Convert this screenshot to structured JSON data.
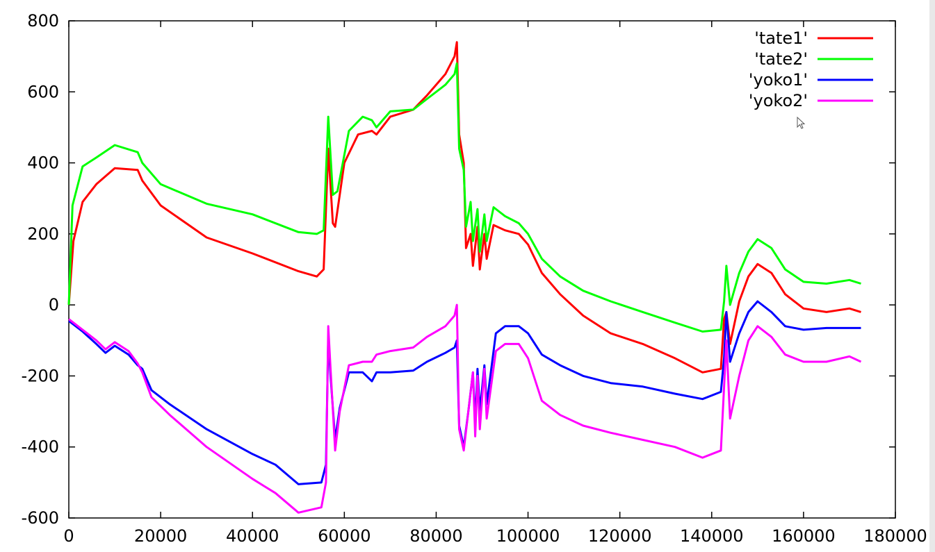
{
  "chart_data": {
    "type": "line",
    "xlim": [
      0,
      180000
    ],
    "ylim": [
      -600,
      800
    ],
    "x_ticks": [
      0,
      20000,
      40000,
      60000,
      80000,
      100000,
      120000,
      140000,
      160000,
      180000
    ],
    "x_tick_labels": [
      "0",
      "20000",
      "40000",
      "60000",
      "80000",
      "100000",
      "120000",
      "140000",
      "160000",
      "180000"
    ],
    "y_ticks": [
      -600,
      -400,
      -200,
      0,
      200,
      400,
      600,
      800
    ],
    "y_tick_labels": [
      "-600",
      "-400",
      "-200",
      "0",
      "200",
      "400",
      "600",
      "800"
    ],
    "grid": false,
    "legend_position": "top-right",
    "series": [
      {
        "name": "'tate1'",
        "color": "#ff0000",
        "points": [
          [
            0,
            0
          ],
          [
            1000,
            180
          ],
          [
            3000,
            290
          ],
          [
            6000,
            340
          ],
          [
            10000,
            385
          ],
          [
            15000,
            380
          ],
          [
            16000,
            350
          ],
          [
            20000,
            280
          ],
          [
            30000,
            190
          ],
          [
            40000,
            145
          ],
          [
            50000,
            95
          ],
          [
            54000,
            80
          ],
          [
            55500,
            100
          ],
          [
            56500,
            440
          ],
          [
            57500,
            230
          ],
          [
            58000,
            220
          ],
          [
            60000,
            400
          ],
          [
            63000,
            480
          ],
          [
            66000,
            490
          ],
          [
            67000,
            480
          ],
          [
            70000,
            530
          ],
          [
            75000,
            550
          ],
          [
            78000,
            590
          ],
          [
            82000,
            650
          ],
          [
            84000,
            700
          ],
          [
            84500,
            740
          ],
          [
            85000,
            480
          ],
          [
            86000,
            400
          ],
          [
            86500,
            160
          ],
          [
            87500,
            200
          ],
          [
            88000,
            110
          ],
          [
            89000,
            220
          ],
          [
            89500,
            100
          ],
          [
            90500,
            200
          ],
          [
            91000,
            130
          ],
          [
            92500,
            225
          ],
          [
            95000,
            210
          ],
          [
            98000,
            200
          ],
          [
            100000,
            170
          ],
          [
            103000,
            90
          ],
          [
            107000,
            30
          ],
          [
            112000,
            -30
          ],
          [
            118000,
            -80
          ],
          [
            125000,
            -110
          ],
          [
            132000,
            -150
          ],
          [
            138000,
            -190
          ],
          [
            142000,
            -180
          ],
          [
            142700,
            -40
          ],
          [
            143200,
            -20
          ],
          [
            144000,
            -110
          ],
          [
            146000,
            10
          ],
          [
            148000,
            80
          ],
          [
            150000,
            115
          ],
          [
            153000,
            90
          ],
          [
            156000,
            30
          ],
          [
            160000,
            -10
          ],
          [
            165000,
            -20
          ],
          [
            170000,
            -10
          ],
          [
            172500,
            -20
          ]
        ]
      },
      {
        "name": "'tate2'",
        "color": "#00ff00",
        "points": [
          [
            0,
            0
          ],
          [
            800,
            280
          ],
          [
            3000,
            390
          ],
          [
            6000,
            415
          ],
          [
            10000,
            450
          ],
          [
            15000,
            430
          ],
          [
            16000,
            400
          ],
          [
            20000,
            340
          ],
          [
            30000,
            285
          ],
          [
            40000,
            255
          ],
          [
            50000,
            205
          ],
          [
            54000,
            200
          ],
          [
            55500,
            210
          ],
          [
            56500,
            530
          ],
          [
            57500,
            310
          ],
          [
            58500,
            320
          ],
          [
            61000,
            490
          ],
          [
            64000,
            530
          ],
          [
            66000,
            520
          ],
          [
            67000,
            500
          ],
          [
            70000,
            545
          ],
          [
            75000,
            550
          ],
          [
            78000,
            580
          ],
          [
            82000,
            620
          ],
          [
            84000,
            650
          ],
          [
            84500,
            680
          ],
          [
            85000,
            440
          ],
          [
            86000,
            380
          ],
          [
            86500,
            220
          ],
          [
            87500,
            290
          ],
          [
            88000,
            180
          ],
          [
            89000,
            270
          ],
          [
            89500,
            150
          ],
          [
            90500,
            255
          ],
          [
            91000,
            180
          ],
          [
            92500,
            275
          ],
          [
            95000,
            250
          ],
          [
            98000,
            230
          ],
          [
            100000,
            200
          ],
          [
            103000,
            130
          ],
          [
            107000,
            80
          ],
          [
            112000,
            40
          ],
          [
            118000,
            10
          ],
          [
            125000,
            -20
          ],
          [
            132000,
            -50
          ],
          [
            138000,
            -75
          ],
          [
            142000,
            -70
          ],
          [
            142700,
            10
          ],
          [
            143200,
            110
          ],
          [
            144000,
            0
          ],
          [
            146000,
            90
          ],
          [
            148000,
            150
          ],
          [
            150000,
            185
          ],
          [
            153000,
            160
          ],
          [
            156000,
            100
          ],
          [
            160000,
            65
          ],
          [
            165000,
            60
          ],
          [
            170000,
            70
          ],
          [
            172500,
            60
          ]
        ]
      },
      {
        "name": "'yoko1'",
        "color": "#0000ff",
        "points": [
          [
            0,
            -45
          ],
          [
            3000,
            -75
          ],
          [
            6000,
            -110
          ],
          [
            8000,
            -135
          ],
          [
            10000,
            -115
          ],
          [
            13000,
            -140
          ],
          [
            15000,
            -170
          ],
          [
            16000,
            -180
          ],
          [
            18000,
            -240
          ],
          [
            22000,
            -280
          ],
          [
            30000,
            -350
          ],
          [
            40000,
            -420
          ],
          [
            45000,
            -450
          ],
          [
            50000,
            -505
          ],
          [
            55000,
            -500
          ],
          [
            56000,
            -450
          ],
          [
            56500,
            -90
          ],
          [
            57000,
            -200
          ],
          [
            58000,
            -380
          ],
          [
            59000,
            -290
          ],
          [
            61000,
            -190
          ],
          [
            64000,
            -190
          ],
          [
            66000,
            -215
          ],
          [
            67000,
            -190
          ],
          [
            70000,
            -190
          ],
          [
            75000,
            -185
          ],
          [
            78000,
            -160
          ],
          [
            82000,
            -135
          ],
          [
            84000,
            -120
          ],
          [
            84500,
            -100
          ],
          [
            85000,
            -340
          ],
          [
            86000,
            -400
          ],
          [
            87000,
            -300
          ],
          [
            88000,
            -190
          ],
          [
            88500,
            -330
          ],
          [
            89000,
            -180
          ],
          [
            89500,
            -300
          ],
          [
            90500,
            -170
          ],
          [
            91000,
            -280
          ],
          [
            93000,
            -80
          ],
          [
            95000,
            -60
          ],
          [
            98000,
            -60
          ],
          [
            100000,
            -80
          ],
          [
            103000,
            -140
          ],
          [
            107000,
            -170
          ],
          [
            112000,
            -200
          ],
          [
            118000,
            -220
          ],
          [
            125000,
            -230
          ],
          [
            132000,
            -250
          ],
          [
            138000,
            -265
          ],
          [
            142000,
            -245
          ],
          [
            142700,
            -150
          ],
          [
            143200,
            -20
          ],
          [
            144000,
            -160
          ],
          [
            146000,
            -80
          ],
          [
            148000,
            -20
          ],
          [
            150000,
            10
          ],
          [
            153000,
            -20
          ],
          [
            156000,
            -60
          ],
          [
            160000,
            -70
          ],
          [
            165000,
            -65
          ],
          [
            170000,
            -65
          ],
          [
            172500,
            -65
          ]
        ]
      },
      {
        "name": "'yoko2'",
        "color": "#ff00ff",
        "points": [
          [
            0,
            -40
          ],
          [
            3000,
            -70
          ],
          [
            6000,
            -100
          ],
          [
            8000,
            -125
          ],
          [
            10000,
            -105
          ],
          [
            13000,
            -130
          ],
          [
            15000,
            -165
          ],
          [
            16000,
            -190
          ],
          [
            18000,
            -260
          ],
          [
            22000,
            -310
          ],
          [
            30000,
            -400
          ],
          [
            40000,
            -490
          ],
          [
            45000,
            -530
          ],
          [
            50000,
            -585
          ],
          [
            55000,
            -570
          ],
          [
            56000,
            -500
          ],
          [
            56500,
            -60
          ],
          [
            57000,
            -180
          ],
          [
            58000,
            -410
          ],
          [
            59000,
            -300
          ],
          [
            61000,
            -170
          ],
          [
            64000,
            -160
          ],
          [
            66000,
            -160
          ],
          [
            67000,
            -140
          ],
          [
            70000,
            -130
          ],
          [
            75000,
            -120
          ],
          [
            78000,
            -90
          ],
          [
            82000,
            -60
          ],
          [
            84000,
            -30
          ],
          [
            84500,
            0
          ],
          [
            85000,
            -350
          ],
          [
            86000,
            -410
          ],
          [
            87000,
            -300
          ],
          [
            88000,
            -190
          ],
          [
            88500,
            -370
          ],
          [
            89000,
            -200
          ],
          [
            89500,
            -350
          ],
          [
            90500,
            -180
          ],
          [
            91000,
            -320
          ],
          [
            93000,
            -130
          ],
          [
            95000,
            -110
          ],
          [
            98000,
            -110
          ],
          [
            100000,
            -150
          ],
          [
            103000,
            -270
          ],
          [
            107000,
            -310
          ],
          [
            112000,
            -340
          ],
          [
            118000,
            -360
          ],
          [
            125000,
            -380
          ],
          [
            132000,
            -400
          ],
          [
            138000,
            -430
          ],
          [
            142000,
            -410
          ],
          [
            142700,
            -230
          ],
          [
            143200,
            -100
          ],
          [
            144000,
            -320
          ],
          [
            146000,
            -200
          ],
          [
            148000,
            -100
          ],
          [
            150000,
            -60
          ],
          [
            153000,
            -90
          ],
          [
            156000,
            -140
          ],
          [
            160000,
            -160
          ],
          [
            165000,
            -160
          ],
          [
            170000,
            -145
          ],
          [
            172500,
            -160
          ]
        ]
      }
    ]
  }
}
